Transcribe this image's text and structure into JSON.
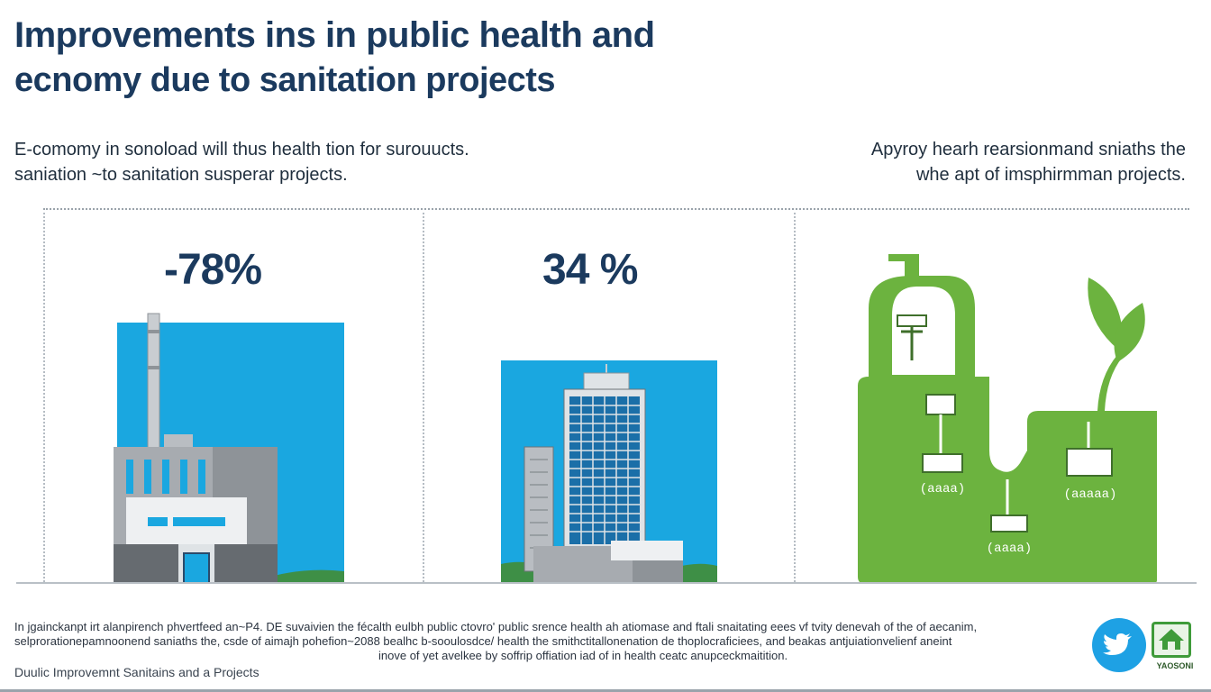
{
  "header": {
    "title_line1": "Improvements ins  in public health  and",
    "title_line2": "ecnomy due  to sanitation projects"
  },
  "subtitles": {
    "left_line1": "E-comomy in sonoload will thus health tion for surouucts.",
    "left_line2": "saniation ~to sanitation  susperar projects.",
    "right_line1": "Apyroy hearh rearsionmand sniaths the",
    "right_line2": "whe apt of imsphirmman projects."
  },
  "stats": {
    "left_value": "-78%",
    "middle_value": "34 %"
  },
  "panels": {
    "left_illustration": "factory-illustration",
    "middle_illustration": "building-illustration",
    "right_illustration": "sanitation-facility-illustration"
  },
  "footer": {
    "paragraph_line1": "In jgainckanpt irt alanpirench phvertfeed an~P4. DE suvaivien the fécalth eulbh public ctovro' public srence health ah atiomase and ftali snaitating eees vf tvity denevah of the of aecanim,",
    "paragraph_line2": "selprorationepamnoonend saniaths the, csde of aimajh pohefion~2088 bealhc b-sooulosdce/ health the smithctitallonenation de thoplocraficiees, and beakas antjuiationvelienf aneint",
    "paragraph_line3": "inove of yet avelkee by soffrip offiation iad of in health ceatc anupceckmaitition.",
    "caption": "Duulic Improvemnt Sanitains and a Projects"
  },
  "social": {
    "twitter_icon": "twitter-bird-icon",
    "brand_icon": "house-logo-icon",
    "brand_label": "YAOSONI"
  },
  "colors": {
    "navy": "#1b3a5e",
    "sky_blue": "#1aa7e0",
    "green": "#6cb33f",
    "grey": "#8e9398"
  }
}
